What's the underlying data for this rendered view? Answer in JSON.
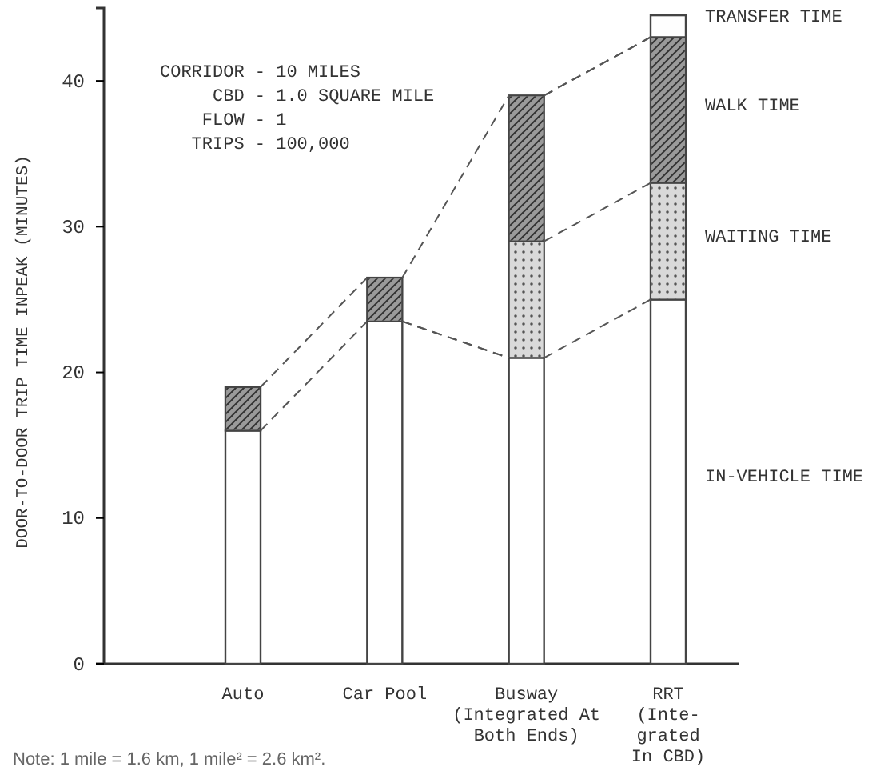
{
  "chart_data": {
    "type": "bar",
    "stacked": true,
    "categories": [
      "Auto",
      "Car Pool",
      "Busway\n(Integrated At\nBoth Ends)",
      "RRT\n(Inte-\ngrated\nIn CBD)"
    ],
    "ylabel": "DOOR-TO-DOOR TRIP TIME INPEAK (MINUTES)",
    "ylim": [
      0,
      45
    ],
    "yticks": [
      0,
      10,
      20,
      30,
      40
    ],
    "legend": "right",
    "series": [
      {
        "name": "IN-VEHICLE TIME",
        "color": "#ffffff",
        "values": [
          16,
          23.5,
          21,
          25
        ]
      },
      {
        "name": "WAITING TIME",
        "color": "#d9d9d9",
        "values": [
          null,
          null,
          8,
          8
        ]
      },
      {
        "name": "WALK TIME",
        "color": "#9a9a9a",
        "values": [
          3,
          3,
          10,
          10
        ]
      },
      {
        "name": "TRANSFER TIME",
        "color": "#fefefe",
        "values": [
          null,
          null,
          null,
          1.5
        ]
      }
    ],
    "annotations": [
      "CORRIDOR - 10 MILES\nCBD - 1.0 SQUARE MILE\nFLOW - 1\nTRIPS - 100,000",
      "Note:  1 mile = 1.6 km,  1 mile² = 2.6 km²."
    ]
  }
}
